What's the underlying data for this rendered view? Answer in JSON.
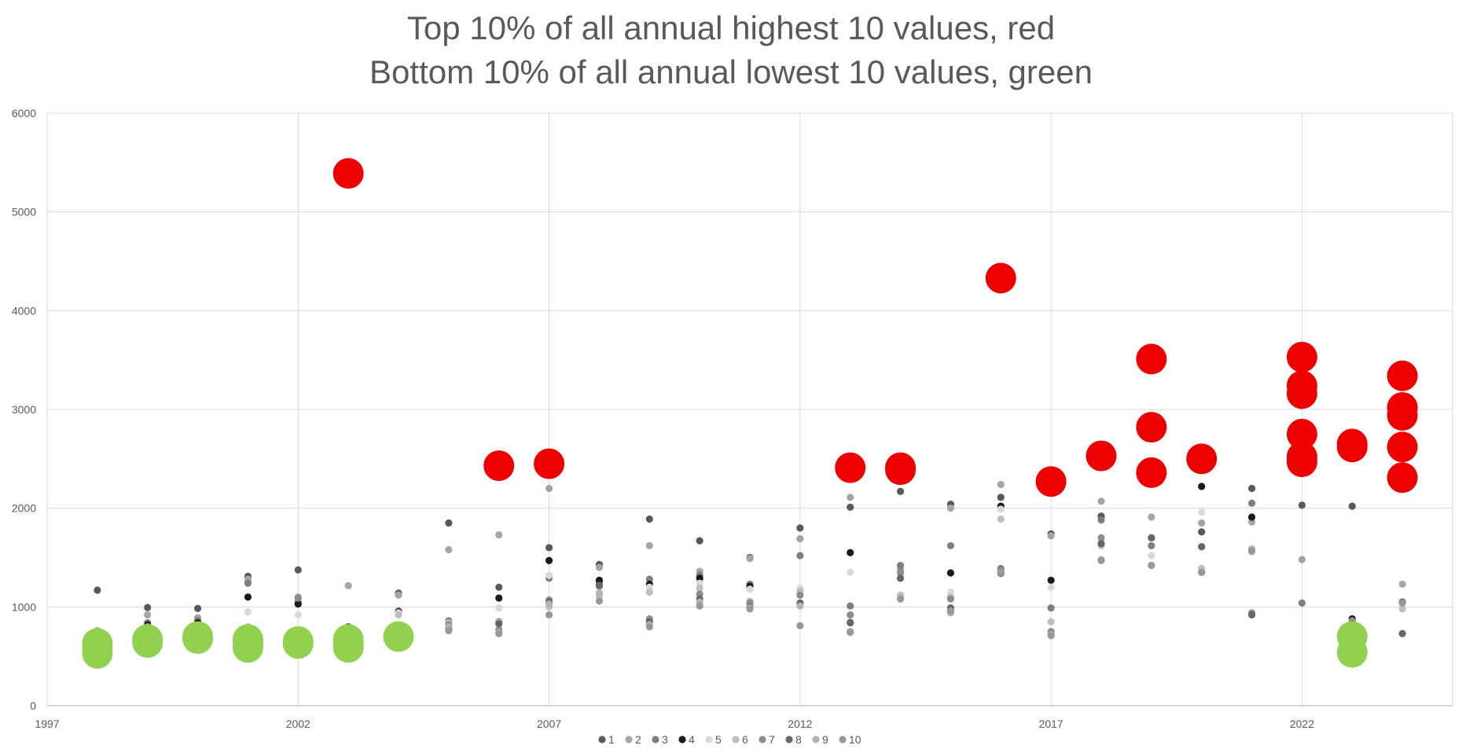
{
  "chart_data": {
    "type": "scatter",
    "title": "Top 10% of all annual highest 10 values, red",
    "subtitle": "Bottom 10% of all annual lowest 10 values, green",
    "xlabel": "",
    "ylabel": "",
    "xlim": [
      1997,
      2025
    ],
    "ylim": [
      0,
      6000
    ],
    "x_ticks": [
      1997,
      2002,
      2007,
      2012,
      2017,
      2022
    ],
    "y_ticks": [
      0,
      1000,
      2000,
      3000,
      4000,
      5000,
      6000
    ],
    "grid": true,
    "legend_position": "bottom",
    "colors": {
      "highlight_top": "#EE0000",
      "highlight_bottom": "#92D050",
      "grid": "#D9D9D9",
      "text": "#595959"
    },
    "series": [
      {
        "name": "1",
        "color": "#595959",
        "points": [
          [
            1998,
            1170
          ],
          [
            1999,
            995
          ],
          [
            2000,
            985
          ],
          [
            2001,
            1310
          ],
          [
            2002,
            1375
          ],
          [
            2004,
            1140
          ],
          [
            2005,
            1850
          ],
          [
            2006,
            1200
          ],
          [
            2007,
            1600
          ],
          [
            2008,
            1430
          ],
          [
            2009,
            1890
          ],
          [
            2010,
            1670
          ],
          [
            2011,
            1500
          ],
          [
            2012,
            1800
          ],
          [
            2013,
            2010
          ],
          [
            2014,
            2170
          ],
          [
            2015,
            2040
          ],
          [
            2016,
            2110
          ],
          [
            2017,
            1740
          ],
          [
            2018,
            1920
          ],
          [
            2019,
            1700
          ],
          [
            2020,
            1760
          ],
          [
            2021,
            2200
          ],
          [
            2022,
            2030
          ],
          [
            2023,
            2020
          ],
          [
            2024,
            1050
          ]
        ]
      },
      {
        "name": "2",
        "color": "#A5A5A5",
        "points": [
          [
            1998,
            760
          ],
          [
            1999,
            920
          ],
          [
            2000,
            890
          ],
          [
            2001,
            1280
          ],
          [
            2002,
            1100
          ],
          [
            2003,
            1215
          ],
          [
            2004,
            1120
          ],
          [
            2005,
            1580
          ],
          [
            2006,
            1730
          ],
          [
            2007,
            2200
          ],
          [
            2008,
            1400
          ],
          [
            2009,
            1620
          ],
          [
            2010,
            1360
          ],
          [
            2011,
            1490
          ],
          [
            2012,
            1690
          ],
          [
            2013,
            2110
          ],
          [
            2014,
            1380
          ],
          [
            2015,
            2000
          ],
          [
            2016,
            2240
          ],
          [
            2017,
            1720
          ],
          [
            2018,
            2070
          ],
          [
            2019,
            1910
          ],
          [
            2020,
            1850
          ],
          [
            2021,
            1860
          ],
          [
            2022,
            1480
          ],
          [
            2023,
            800
          ],
          [
            2024,
            1230
          ]
        ]
      },
      {
        "name": "3",
        "color": "#7F7F7F",
        "points": [
          [
            1998,
            720
          ],
          [
            1999,
            840
          ],
          [
            2000,
            860
          ],
          [
            2001,
            1240
          ],
          [
            2002,
            1050
          ],
          [
            2003,
            800
          ],
          [
            2004,
            960
          ],
          [
            2005,
            860
          ],
          [
            2006,
            850
          ],
          [
            2007,
            1290
          ],
          [
            2008,
            1250
          ],
          [
            2009,
            1280
          ],
          [
            2010,
            1320
          ],
          [
            2011,
            1230
          ],
          [
            2012,
            1520
          ],
          [
            2013,
            1010
          ],
          [
            2014,
            1420
          ],
          [
            2015,
            1620
          ],
          [
            2016,
            1390
          ],
          [
            2017,
            990
          ],
          [
            2018,
            1880
          ],
          [
            2019,
            1620
          ],
          [
            2020,
            1610
          ],
          [
            2021,
            2050
          ],
          [
            2022,
            1040
          ],
          [
            2024,
            1040
          ]
        ]
      },
      {
        "name": "4",
        "color": "#1A1A1A",
        "points": [
          [
            1998,
            700
          ],
          [
            1999,
            820
          ],
          [
            2000,
            840
          ],
          [
            2001,
            1100
          ],
          [
            2002,
            1030
          ],
          [
            2003,
            790
          ],
          [
            2004,
            950
          ],
          [
            2006,
            1090
          ],
          [
            2007,
            1470
          ],
          [
            2008,
            1270
          ],
          [
            2009,
            1230
          ],
          [
            2010,
            1290
          ],
          [
            2011,
            1210
          ],
          [
            2013,
            1550
          ],
          [
            2015,
            1345
          ],
          [
            2016,
            2020
          ],
          [
            2017,
            1270
          ],
          [
            2018,
            1640
          ],
          [
            2019,
            2250
          ],
          [
            2020,
            2220
          ],
          [
            2021,
            1910
          ],
          [
            2023,
            880
          ]
        ]
      },
      {
        "name": "5",
        "color": "#D9D9D9",
        "points": [
          [
            1998,
            690
          ],
          [
            2001,
            950
          ],
          [
            2002,
            920
          ],
          [
            2004,
            940
          ],
          [
            2006,
            990
          ],
          [
            2007,
            1320
          ],
          [
            2008,
            1140
          ],
          [
            2009,
            1200
          ],
          [
            2010,
            1240
          ],
          [
            2011,
            1180
          ],
          [
            2012,
            1190
          ],
          [
            2013,
            1350
          ],
          [
            2014,
            1320
          ],
          [
            2015,
            1150
          ],
          [
            2016,
            1990
          ],
          [
            2017,
            1200
          ],
          [
            2018,
            1650
          ],
          [
            2019,
            1520
          ],
          [
            2020,
            1960
          ],
          [
            2021,
            1580
          ],
          [
            2024,
            990
          ]
        ]
      },
      {
        "name": "6",
        "color": "#BFBFBF",
        "points": [
          [
            1998,
            670
          ],
          [
            1999,
            800
          ],
          [
            2001,
            800
          ],
          [
            2003,
            780
          ],
          [
            2004,
            920
          ],
          [
            2005,
            840
          ],
          [
            2006,
            840
          ],
          [
            2007,
            1000
          ],
          [
            2008,
            1110
          ],
          [
            2009,
            1150
          ],
          [
            2010,
            1190
          ],
          [
            2011,
            1060
          ],
          [
            2012,
            1160
          ],
          [
            2013,
            850
          ],
          [
            2014,
            1120
          ],
          [
            2015,
            1100
          ],
          [
            2016,
            1890
          ],
          [
            2017,
            850
          ],
          [
            2018,
            1620
          ],
          [
            2019,
            1420
          ],
          [
            2020,
            1390
          ],
          [
            2021,
            1590
          ],
          [
            2024,
            980
          ]
        ]
      },
      {
        "name": "7",
        "color": "#8C8C8C",
        "points": [
          [
            1999,
            800
          ],
          [
            2002,
            1090
          ],
          [
            2005,
            820
          ],
          [
            2006,
            770
          ],
          [
            2007,
            1070
          ],
          [
            2008,
            1210
          ],
          [
            2009,
            880
          ],
          [
            2010,
            1130
          ],
          [
            2011,
            1040
          ],
          [
            2012,
            1120
          ],
          [
            2013,
            920
          ],
          [
            2014,
            1350
          ],
          [
            2015,
            1080
          ],
          [
            2016,
            1370
          ],
          [
            2017,
            750
          ],
          [
            2018,
            1700
          ],
          [
            2019,
            1420
          ],
          [
            2020,
            1350
          ],
          [
            2021,
            940
          ],
          [
            2023,
            860
          ]
        ]
      },
      {
        "name": "8",
        "color": "#666666",
        "points": [
          [
            2003,
            800
          ],
          [
            2005,
            780
          ],
          [
            2006,
            830
          ],
          [
            2007,
            1050
          ],
          [
            2008,
            1220
          ],
          [
            2009,
            850
          ],
          [
            2010,
            1080
          ],
          [
            2011,
            1000
          ],
          [
            2012,
            1040
          ],
          [
            2013,
            840
          ],
          [
            2014,
            1290
          ],
          [
            2015,
            990
          ],
          [
            2016,
            1340
          ],
          [
            2017,
            720
          ],
          [
            2018,
            1640
          ],
          [
            2019,
            1700
          ],
          [
            2020,
            1610
          ],
          [
            2021,
            920
          ],
          [
            2024,
            730
          ]
        ]
      },
      {
        "name": "9",
        "color": "#B3B3B3",
        "points": [
          [
            2005,
            800
          ],
          [
            2006,
            740
          ],
          [
            2007,
            1030
          ],
          [
            2008,
            1140
          ],
          [
            2009,
            820
          ],
          [
            2010,
            1050
          ],
          [
            2011,
            990
          ],
          [
            2012,
            1010
          ],
          [
            2013,
            740
          ],
          [
            2014,
            1090
          ],
          [
            2015,
            940
          ],
          [
            2016,
            1350
          ],
          [
            2017,
            720
          ],
          [
            2018,
            1480
          ],
          [
            2021,
            1560
          ]
        ]
      },
      {
        "name": "10",
        "color": "#999999",
        "points": [
          [
            2005,
            760
          ],
          [
            2006,
            730
          ],
          [
            2007,
            920
          ],
          [
            2008,
            1060
          ],
          [
            2009,
            800
          ],
          [
            2010,
            1010
          ],
          [
            2011,
            980
          ],
          [
            2012,
            810
          ],
          [
            2013,
            750
          ],
          [
            2014,
            1080
          ],
          [
            2015,
            960
          ],
          [
            2016,
            1350
          ],
          [
            2017,
            710
          ],
          [
            2018,
            1470
          ],
          [
            2019,
            1420
          ],
          [
            2020,
            1350
          ],
          [
            2021,
            1570
          ],
          [
            2024,
            1040
          ]
        ]
      },
      {
        "name": "",
        "highlight": "top",
        "color": "#EE0000",
        "points": [
          [
            2003,
            5390
          ],
          [
            2006,
            2430
          ],
          [
            2007,
            2450
          ],
          [
            2013,
            2410
          ],
          [
            2014,
            2410
          ],
          [
            2014,
            2390
          ],
          [
            2016,
            4330
          ],
          [
            2017,
            2270
          ],
          [
            2018,
            2530
          ],
          [
            2019,
            3510
          ],
          [
            2019,
            2820
          ],
          [
            2019,
            2360
          ],
          [
            2020,
            2500
          ],
          [
            2022,
            3530
          ],
          [
            2022,
            3240
          ],
          [
            2022,
            3160
          ],
          [
            2022,
            2750
          ],
          [
            2022,
            2520
          ],
          [
            2022,
            2470
          ],
          [
            2023,
            2650
          ],
          [
            2023,
            2620
          ],
          [
            2024,
            3340
          ],
          [
            2024,
            3020
          ],
          [
            2024,
            2940
          ],
          [
            2024,
            2620
          ],
          [
            2024,
            2310
          ]
        ]
      },
      {
        "name": "",
        "highlight": "bottom",
        "color": "#92D050",
        "points": [
          [
            1998,
            630
          ],
          [
            1998,
            580
          ],
          [
            1998,
            530
          ],
          [
            1999,
            670
          ],
          [
            1999,
            640
          ],
          [
            2000,
            700
          ],
          [
            2000,
            680
          ],
          [
            2001,
            670
          ],
          [
            2001,
            640
          ],
          [
            2001,
            590
          ],
          [
            2002,
            650
          ],
          [
            2002,
            630
          ],
          [
            2003,
            670
          ],
          [
            2003,
            640
          ],
          [
            2003,
            590
          ],
          [
            2004,
            700
          ],
          [
            2023,
            700
          ],
          [
            2023,
            540
          ]
        ]
      }
    ]
  }
}
